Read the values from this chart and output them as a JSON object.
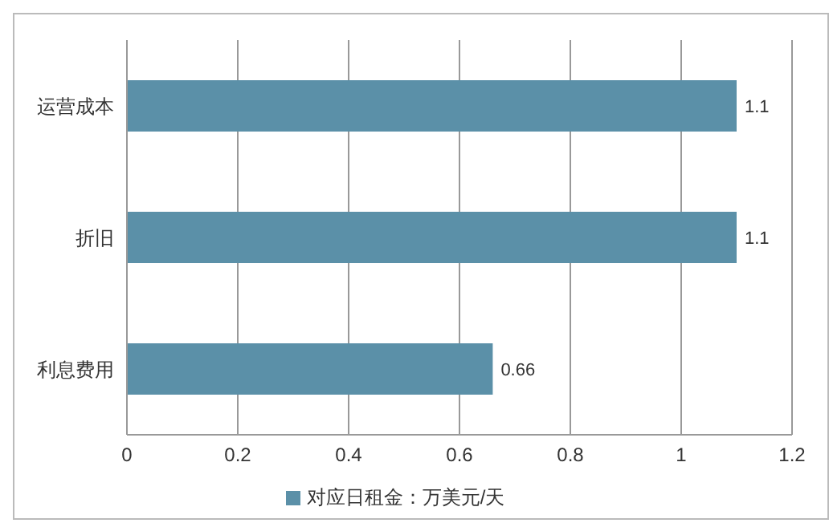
{
  "chart_data": {
    "type": "bar",
    "orientation": "horizontal",
    "categories": [
      "运营成本",
      "折旧",
      "利息费用"
    ],
    "series": [
      {
        "name": "对应日租金：万美元/天",
        "color": "#5b90a8",
        "values": [
          1.1,
          1.1,
          0.66
        ]
      }
    ],
    "xlim": [
      0,
      1.2
    ],
    "xticks": [
      0,
      0.2,
      0.4,
      0.6,
      0.8,
      1,
      1.2
    ],
    "grid": "x",
    "legend": "bottom",
    "data_labels": true
  }
}
